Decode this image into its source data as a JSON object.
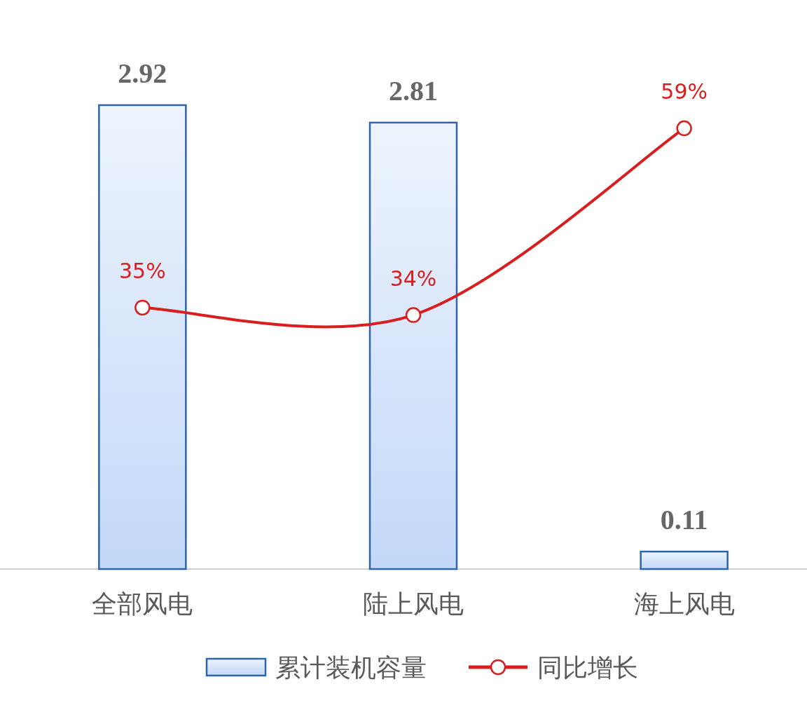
{
  "chart_data": {
    "type": "bar",
    "categories": [
      "全部风电",
      "陆上风电",
      "海上风电"
    ],
    "legend": "bottom",
    "series": [
      {
        "name": "累计装机容量",
        "color": "#2e64a8",
        "values": [
          2.92,
          2.81,
          0.11
        ],
        "data_labels": true
      },
      {
        "name": "同比增长",
        "type": "line",
        "axis": "y2",
        "color": "#d81e1e",
        "marker": "circle",
        "values": [
          35,
          34,
          59
        ],
        "value_labels": [
          "35%",
          "34%",
          "59%"
        ]
      }
    ]
  }
}
